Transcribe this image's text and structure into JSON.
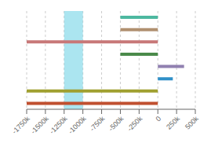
{
  "chart_data": {
    "type": "bar",
    "orientation": "horizontal",
    "categories": [
      null,
      null,
      null,
      null,
      null,
      null,
      null,
      null
    ],
    "values": [
      [
        -500,
        0
      ],
      [
        -500,
        0
      ],
      [
        -1750,
        0
      ],
      [
        -500,
        0
      ],
      [
        0,
        350
      ],
      [
        0,
        200
      ],
      [
        -1750,
        0
      ],
      [
        -1750,
        0
      ]
    ],
    "colors": [
      "#4db8a0",
      "#b09070",
      "#c87878",
      "#4a8a4a",
      "#9080b0",
      "#3090c8",
      "#a0a030",
      "#c05030"
    ],
    "band": {
      "range": [
        -1250,
        -1000
      ],
      "color": "#87DAEA"
    },
    "xlim": [
      -1750,
      500
    ],
    "xticks": [
      {
        "value": -1750,
        "label": "-1750k"
      },
      {
        "value": -1500,
        "label": "-1500k"
      },
      {
        "value": -1250,
        "label": "-1250k"
      },
      {
        "value": -1000,
        "label": "-1000k"
      },
      {
        "value": -750,
        "label": "-750k"
      },
      {
        "value": -500,
        "label": "-500k"
      },
      {
        "value": -250,
        "label": "-250k"
      },
      0,
      {
        "value": 250,
        "label": "250k"
      },
      {
        "value": 500,
        "label": "500k"
      }
    ],
    "grid": true,
    "tick_labels": "x"
  }
}
